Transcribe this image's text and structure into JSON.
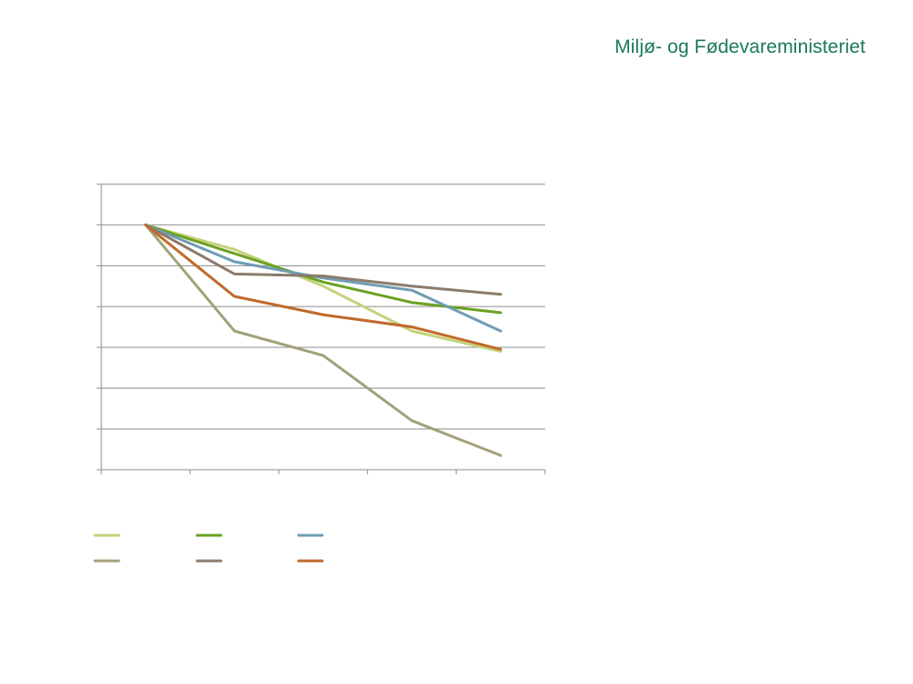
{
  "brand": {
    "text": "Miljø- og Fødevareministeriet",
    "color": "#1a7a57"
  },
  "chart_data": {
    "type": "line",
    "title": "",
    "xlabel": "",
    "ylabel": "",
    "tick_labels_visible": false,
    "grid": "horizontal",
    "legend_placement": "bottom-left",
    "ylim": [
      0,
      7
    ],
    "x_category_count": 5,
    "series": [
      {
        "color": "#c5d27a",
        "values": [
          6.0,
          5.4,
          4.5,
          3.4,
          2.9
        ]
      },
      {
        "color": "#6aa121",
        "values": [
          6.0,
          5.3,
          4.6,
          4.1,
          3.85
        ]
      },
      {
        "color": "#6e9db5",
        "values": [
          6.0,
          5.1,
          4.7,
          4.4,
          3.4
        ]
      },
      {
        "color": "#a3a17a",
        "values": [
          6.0,
          3.4,
          2.8,
          1.2,
          0.35
        ]
      },
      {
        "color": "#8c7b6b",
        "values": [
          6.0,
          4.8,
          4.75,
          4.5,
          4.3
        ]
      },
      {
        "color": "#c06a2b",
        "values": [
          6.0,
          4.25,
          3.8,
          3.5,
          2.95
        ]
      }
    ]
  }
}
